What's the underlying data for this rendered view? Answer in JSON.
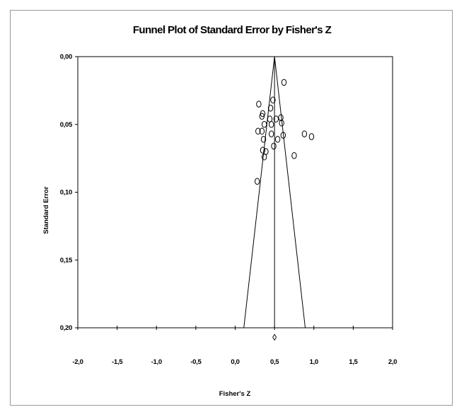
{
  "chart_data": {
    "type": "scatter",
    "title": "Funnel Plot of Standard Error by Fisher's Z",
    "xlabel": "Fisher's Z",
    "ylabel": "Standard Error",
    "xlim": [
      -2.0,
      2.0
    ],
    "ylim": [
      0.0,
      0.2
    ],
    "y_inverted": true,
    "x_ticks": [
      "-2,0",
      "-1,5",
      "-1,0",
      "-0,5",
      "0,0",
      "0,5",
      "1,0",
      "1,5",
      "2,0"
    ],
    "x_tick_values": [
      -2.0,
      -1.5,
      -1.0,
      -0.5,
      0.0,
      0.5,
      1.0,
      1.5,
      2.0
    ],
    "y_ticks": [
      "0,00",
      "0,05",
      "0,10",
      "0,15",
      "0,20"
    ],
    "y_tick_values": [
      0.0,
      0.05,
      0.1,
      0.15,
      0.2
    ],
    "pooled_estimate": 0.5,
    "funnel_bottom": [
      0.11,
      0.89
    ],
    "summary_diamond": {
      "x": 0.5,
      "se": 0.207
    },
    "points": [
      {
        "x": 0.62,
        "se": 0.019
      },
      {
        "x": 0.3,
        "se": 0.035
      },
      {
        "x": 0.48,
        "se": 0.032
      },
      {
        "x": 0.45,
        "se": 0.038
      },
      {
        "x": 0.35,
        "se": 0.042
      },
      {
        "x": 0.34,
        "se": 0.044
      },
      {
        "x": 0.52,
        "se": 0.046
      },
      {
        "x": 0.58,
        "se": 0.045
      },
      {
        "x": 0.44,
        "se": 0.046
      },
      {
        "x": 0.59,
        "se": 0.049
      },
      {
        "x": 0.37,
        "se": 0.05
      },
      {
        "x": 0.46,
        "se": 0.05
      },
      {
        "x": 0.29,
        "se": 0.055
      },
      {
        "x": 0.34,
        "se": 0.055
      },
      {
        "x": 0.46,
        "se": 0.057
      },
      {
        "x": 0.61,
        "se": 0.058
      },
      {
        "x": 0.88,
        "se": 0.057
      },
      {
        "x": 0.97,
        "se": 0.059
      },
      {
        "x": 0.36,
        "se": 0.061
      },
      {
        "x": 0.54,
        "se": 0.061
      },
      {
        "x": 0.49,
        "se": 0.066
      },
      {
        "x": 0.35,
        "se": 0.069
      },
      {
        "x": 0.39,
        "se": 0.07
      },
      {
        "x": 0.75,
        "se": 0.073
      },
      {
        "x": 0.37,
        "se": 0.074
      },
      {
        "x": 0.28,
        "se": 0.092
      }
    ]
  }
}
